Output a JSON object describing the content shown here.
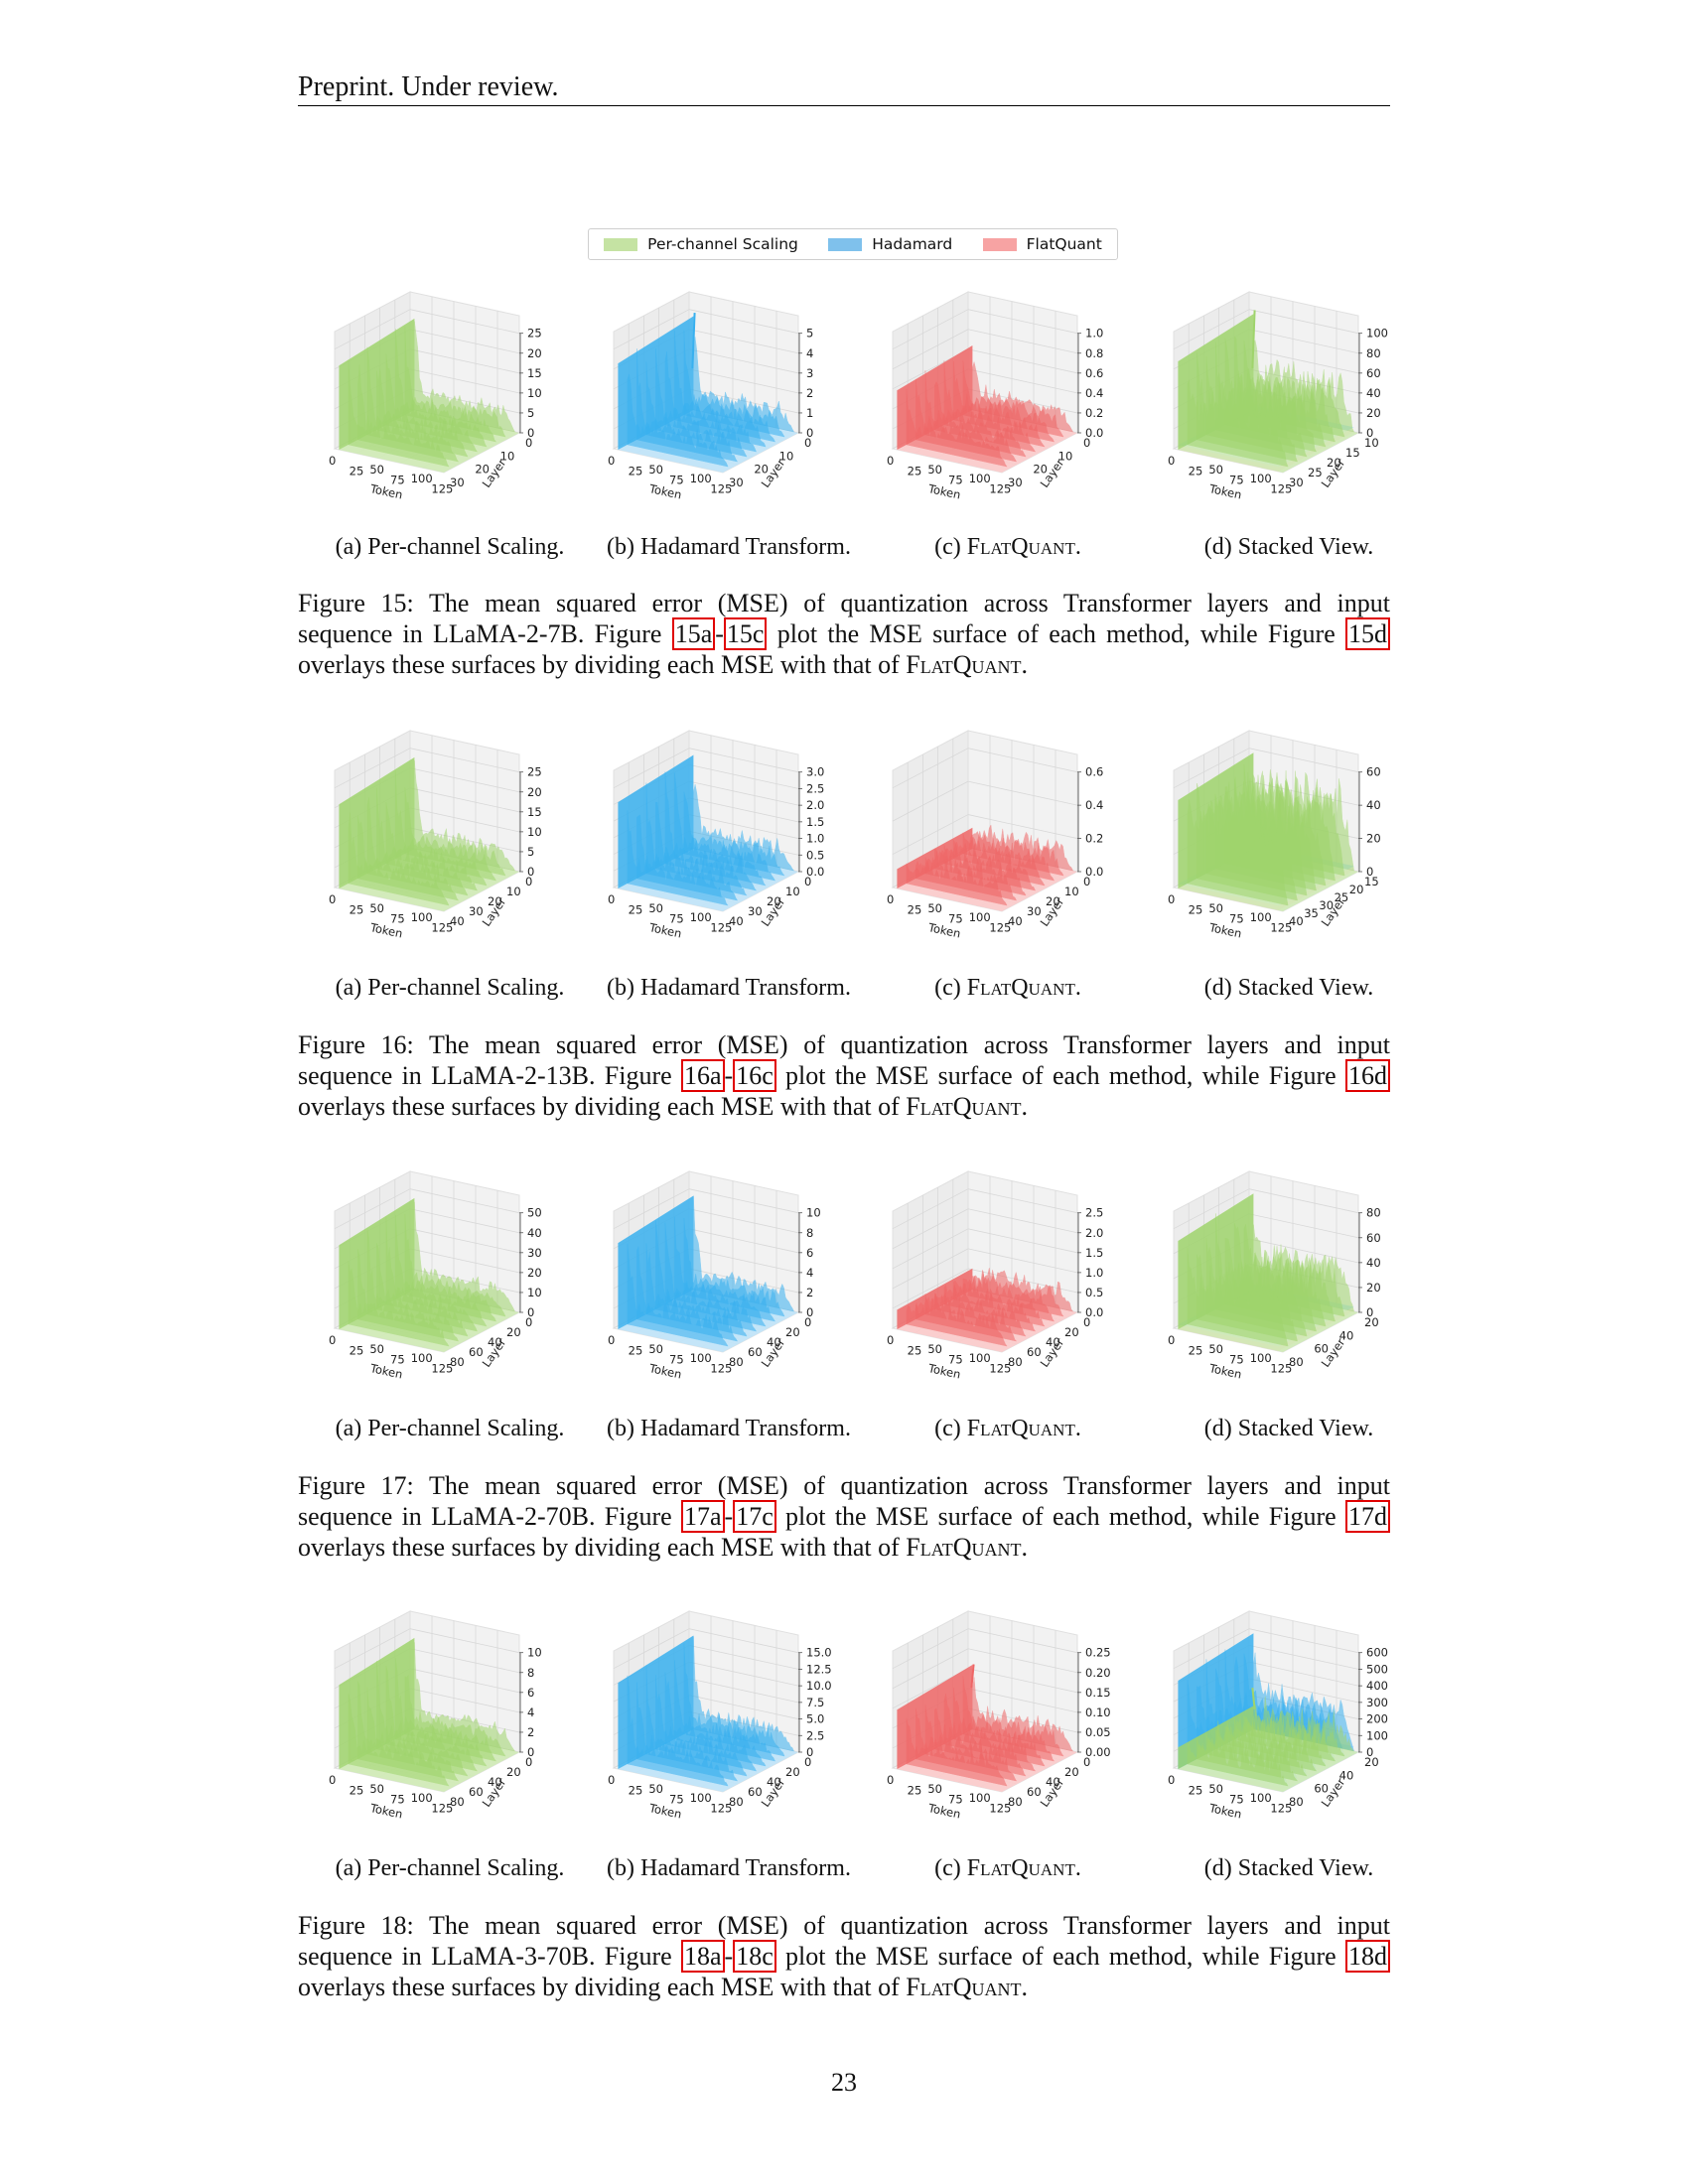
{
  "header": "Preprint. Under review.",
  "legend": [
    {
      "label": "Per-channel Scaling",
      "color": "#c5e3a3"
    },
    {
      "label": "Hadamard",
      "color": "#7fc1ec"
    },
    {
      "label": "FlatQuant",
      "color": "#f7a3a3"
    }
  ],
  "colors": {
    "per_channel": "#9fd46c",
    "hadamard": "#38b0ef",
    "flatquant": "#ee6666",
    "per_channel_light": "#cfeab5",
    "hadamard_light": "#bfe3f8",
    "flatquant_light": "#fbcaca"
  },
  "axis_labels": {
    "x": "Token",
    "y": "Layer"
  },
  "x_ticks": [
    "0",
    "25",
    "50",
    "75",
    "100",
    "125"
  ],
  "subcaptions": {
    "a": "(a) Per-channel Scaling.",
    "b": "(b) Hadamard Transform.",
    "c_prefix": "(c) ",
    "c_name": "FlatQuant",
    "c_suffix": ".",
    "d": "(d) Stacked View."
  },
  "caption_text": {
    "intro": "The mean squared error (MSE) of quantization across Transformer layers and input",
    "seq": "sequence in",
    "figure_word": "Figure",
    "plot": "plot the MSE surface of each method, while Figure",
    "overlay": "overlays these surfaces by dividing each MSE with that of",
    "flatquant": "FlatQuant",
    "period": "."
  },
  "figures": [
    {
      "num": "Figure 15:",
      "model": "LLaMA-2-7B.",
      "ref_a": "15a",
      "ref_c": "15c",
      "ref_d": "15d",
      "panels": [
        {
          "type": "per_channel",
          "z_ticks": [
            "0",
            "5",
            "10",
            "15",
            "20",
            "25"
          ],
          "layer_ticks": [
            "0",
            "10",
            "20",
            "30"
          ]
        },
        {
          "type": "hadamard",
          "z_ticks": [
            "0",
            "1",
            "2",
            "3",
            "4",
            "5"
          ],
          "layer_ticks": [
            "0",
            "10",
            "20",
            "30"
          ]
        },
        {
          "type": "flatquant",
          "z_ticks": [
            "0.0",
            "0.2",
            "0.4",
            "0.6",
            "0.8",
            "1.0"
          ],
          "layer_ticks": [
            "0",
            "10",
            "20",
            "30"
          ]
        },
        {
          "type": "stacked",
          "z_ticks": [
            "0",
            "20",
            "40",
            "60",
            "80",
            "100"
          ],
          "layer_ticks": [
            "10",
            "15",
            "20",
            "25",
            "30"
          ]
        }
      ]
    },
    {
      "num": "Figure 16:",
      "model": "LLaMA-2-13B.",
      "ref_a": "16a",
      "ref_c": "16c",
      "ref_d": "16d",
      "panels": [
        {
          "type": "per_channel",
          "z_ticks": [
            "0",
            "5",
            "10",
            "15",
            "20",
            "25"
          ],
          "layer_ticks": [
            "0",
            "10",
            "20",
            "30",
            "40"
          ]
        },
        {
          "type": "hadamard",
          "z_ticks": [
            "0.0",
            "0.5",
            "1.0",
            "1.5",
            "2.0",
            "2.5",
            "3.0"
          ],
          "layer_ticks": [
            "0",
            "10",
            "20",
            "30",
            "40"
          ]
        },
        {
          "type": "flatquant",
          "z_ticks": [
            "0.0",
            "0.2",
            "0.4",
            "0.6"
          ],
          "layer_ticks": [
            "0",
            "10",
            "20",
            "30",
            "40"
          ]
        },
        {
          "type": "stacked",
          "z_ticks": [
            "0",
            "20",
            "40",
            "60"
          ],
          "layer_ticks": [
            "15",
            "20",
            "25",
            "30",
            "35",
            "40"
          ]
        }
      ]
    },
    {
      "num": "Figure 17:",
      "model": "LLaMA-2-70B.",
      "ref_a": "17a",
      "ref_c": "17c",
      "ref_d": "17d",
      "panels": [
        {
          "type": "per_channel",
          "z_ticks": [
            "0",
            "10",
            "20",
            "30",
            "40",
            "50"
          ],
          "layer_ticks": [
            "0",
            "20",
            "40",
            "60",
            "80"
          ]
        },
        {
          "type": "hadamard",
          "z_ticks": [
            "0",
            "2",
            "4",
            "6",
            "8",
            "10"
          ],
          "layer_ticks": [
            "0",
            "20",
            "40",
            "60",
            "80"
          ]
        },
        {
          "type": "flatquant",
          "z_ticks": [
            "0.0",
            "0.5",
            "1.0",
            "1.5",
            "2.0",
            "2.5"
          ],
          "layer_ticks": [
            "0",
            "20",
            "40",
            "60",
            "80"
          ]
        },
        {
          "type": "stacked",
          "z_ticks": [
            "0",
            "20",
            "40",
            "60",
            "80"
          ],
          "layer_ticks": [
            "20",
            "40",
            "60",
            "80"
          ]
        }
      ]
    },
    {
      "num": "Figure 18:",
      "model": "LLaMA-3-70B.",
      "ref_a": "18a",
      "ref_c": "18c",
      "ref_d": "18d",
      "panels": [
        {
          "type": "per_channel",
          "z_ticks": [
            "0",
            "2",
            "4",
            "6",
            "8",
            "10"
          ],
          "layer_ticks": [
            "0",
            "20",
            "40",
            "60",
            "80"
          ]
        },
        {
          "type": "hadamard",
          "z_ticks": [
            "0",
            "2.5",
            "5.0",
            "7.5",
            "10.0",
            "12.5",
            "15.0"
          ],
          "layer_ticks": [
            "0",
            "20",
            "40",
            "60",
            "80"
          ]
        },
        {
          "type": "flatquant",
          "z_ticks": [
            "0.00",
            "0.05",
            "0.10",
            "0.15",
            "0.20",
            "0.25"
          ],
          "layer_ticks": [
            "0",
            "20",
            "40",
            "60",
            "80"
          ]
        },
        {
          "type": "stacked",
          "z_ticks": [
            "0",
            "100",
            "200",
            "300",
            "400",
            "500",
            "600"
          ],
          "layer_ticks": [
            "20",
            "40",
            "60",
            "80"
          ]
        }
      ]
    }
  ],
  "page_number": "23"
}
